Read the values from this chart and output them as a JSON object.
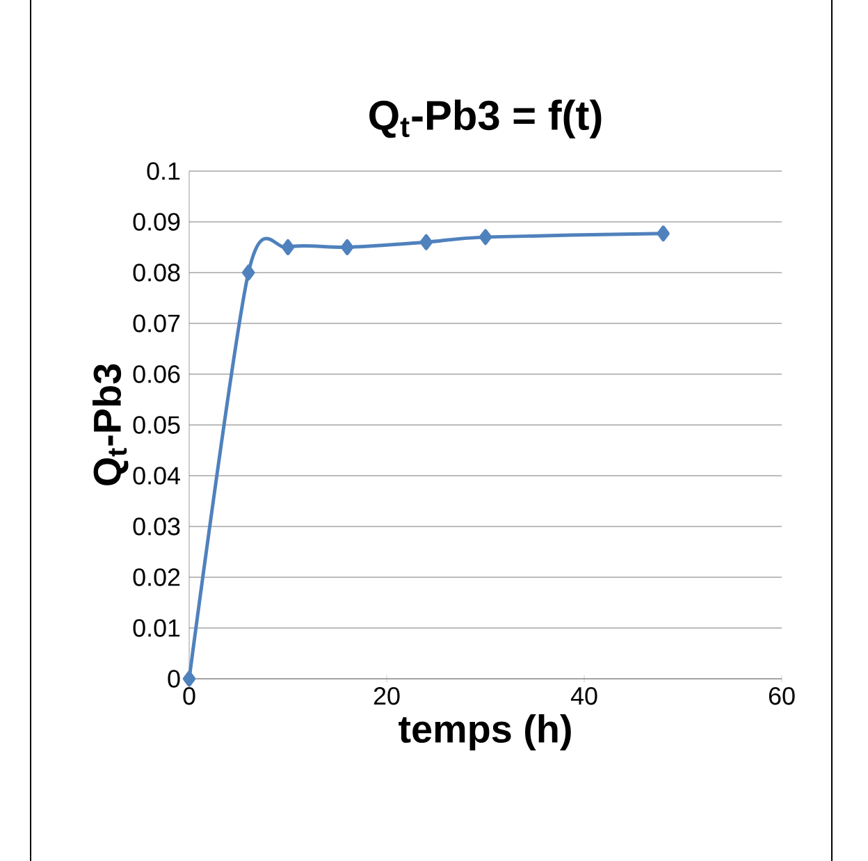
{
  "chart_data": {
    "type": "line",
    "title": "**Q$_{t}$-Pb3 = f(t)**",
    "xlabel": "**temps (h)**",
    "ylabel": "**Q$_{t}$-Pb3**",
    "series": [
      {
        "color": "#4f81bd",
        "x": [
          0,
          6,
          10,
          16,
          24,
          30,
          48
        ],
        "values": [
          0,
          0.08,
          0.085,
          0.085,
          0.086,
          0.087,
          0.0877
        ]
      }
    ],
    "xlim": [
      0,
      60
    ],
    "xticks": [
      0,
      20,
      40,
      60
    ],
    "ylim": [
      0,
      0.1
    ],
    "yticks": [
      0,
      0.01,
      0.02,
      0.03,
      0.04,
      0.05,
      0.06,
      0.07,
      0.08,
      0.09,
      0.1
    ],
    "grid": "y",
    "marker": "diamond",
    "line_style": "solid"
  }
}
